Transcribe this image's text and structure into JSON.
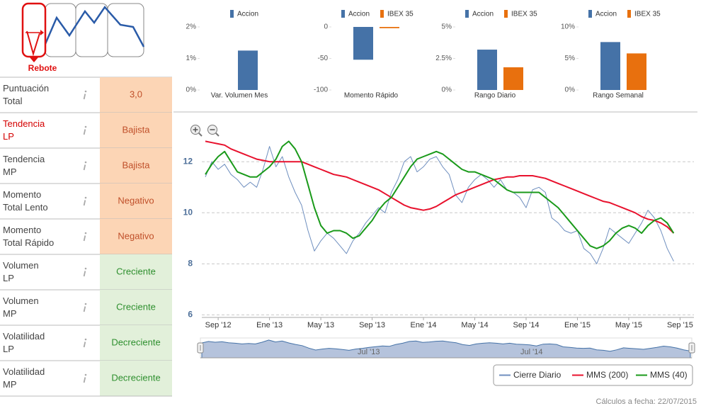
{
  "logo": {
    "label": "Rebote"
  },
  "table": {
    "rows": [
      {
        "label": [
          "Puntuación",
          "Total"
        ],
        "value": "3,0",
        "label_color": "#444444",
        "bg": "#fcd5b5",
        "color": "#c0502a"
      },
      {
        "label": [
          "Tendencia",
          "LP"
        ],
        "value": "Bajista",
        "label_color": "#d40000",
        "bg": "#fcd5b5",
        "color": "#c0502a"
      },
      {
        "label": [
          "Tendencia",
          "MP"
        ],
        "value": "Bajista",
        "label_color": "#444444",
        "bg": "#fcd5b5",
        "color": "#c0502a"
      },
      {
        "label": [
          "Momento",
          "Total Lento"
        ],
        "value": "Negativo",
        "label_color": "#444444",
        "bg": "#fcd5b5",
        "color": "#c0502a"
      },
      {
        "label": [
          "Momento",
          "Total Rápido"
        ],
        "value": "Negativo",
        "label_color": "#444444",
        "bg": "#fcd5b5",
        "color": "#c0502a"
      },
      {
        "label": [
          "Volumen",
          "LP"
        ],
        "value": "Creciente",
        "label_color": "#444444",
        "bg": "#e2f0da",
        "color": "#2e8f2e"
      },
      {
        "label": [
          "Volumen",
          "MP"
        ],
        "value": "Creciente",
        "label_color": "#444444",
        "bg": "#e2f0da",
        "color": "#2e8f2e"
      },
      {
        "label": [
          "Volatilidad",
          "LP"
        ],
        "value": "Decreciente",
        "label_color": "#444444",
        "bg": "#e2f0da",
        "color": "#2e8f2e"
      },
      {
        "label": [
          "Volatilidad",
          "MP"
        ],
        "value": "Decreciente",
        "label_color": "#444444",
        "bg": "#e2f0da",
        "color": "#2e8f2e"
      }
    ]
  },
  "chart_data": [
    {
      "type": "bar",
      "categories": [
        "Var. Volumen Mes"
      ],
      "series": [
        {
          "name": "Accion",
          "color": "#4572a7",
          "values": [
            1.25
          ]
        }
      ],
      "ylim": [
        0,
        2
      ],
      "yticks": [
        {
          "value": 0,
          "label": "0%"
        },
        {
          "value": 1,
          "label": "1%"
        },
        {
          "value": 2,
          "label": "2%"
        }
      ]
    },
    {
      "type": "bar",
      "categories": [
        "Momento Rápido"
      ],
      "series": [
        {
          "name": "Accion",
          "color": "#4572a7",
          "values": [
            -52
          ]
        },
        {
          "name": "IBEX 35",
          "color": "#e8700e",
          "values": [
            -2
          ]
        }
      ],
      "ylim": [
        -100,
        0
      ],
      "yticks": [
        0,
        -50,
        -100
      ]
    },
    {
      "type": "bar",
      "categories": [
        "Rango Diario"
      ],
      "series": [
        {
          "name": "Accion",
          "color": "#4572a7",
          "values": [
            3.2
          ]
        },
        {
          "name": "IBEX 35",
          "color": "#e8700e",
          "values": [
            1.8
          ]
        }
      ],
      "ylim": [
        0,
        5
      ],
      "yticks": [
        {
          "value": 0,
          "label": "0%"
        },
        {
          "value": 2.5,
          "label": "2.5%"
        },
        {
          "value": 5,
          "label": "5%"
        }
      ]
    },
    {
      "type": "bar",
      "categories": [
        "Rango Semanal"
      ],
      "series": [
        {
          "name": "Accion",
          "color": "#4572a7",
          "values": [
            7.6
          ]
        },
        {
          "name": "IBEX 35",
          "color": "#e8700e",
          "values": [
            5.8
          ]
        }
      ],
      "ylim": [
        0,
        10
      ],
      "yticks": [
        {
          "value": 0,
          "label": "0%"
        },
        {
          "value": 5,
          "label": "5%"
        },
        {
          "value": 10,
          "label": "10%"
        }
      ]
    },
    {
      "type": "line",
      "categories": [
        null,
        null,
        "Sep '12",
        null,
        null,
        null,
        null,
        null,
        null,
        null,
        "Ene '13",
        null,
        null,
        null,
        null,
        null,
        null,
        null,
        "May '13",
        null,
        null,
        null,
        null,
        null,
        null,
        null,
        "Sep '13",
        null,
        null,
        null,
        null,
        null,
        null,
        null,
        "Ene '14",
        null,
        null,
        null,
        null,
        null,
        null,
        null,
        "May '14",
        null,
        null,
        null,
        null,
        null,
        null,
        null,
        "Sep '14",
        null,
        null,
        null,
        null,
        null,
        null,
        null,
        "Ene '15",
        null,
        null,
        null,
        null,
        null,
        null,
        null,
        "May '15",
        null,
        null,
        null,
        null,
        null,
        null,
        null,
        "Sep '15"
      ],
      "series": [
        {
          "name": "Cierre Diario",
          "color": "#6f8fbf",
          "values": [
            11.4,
            12.0,
            11.7,
            11.9,
            11.5,
            11.3,
            11.0,
            11.2,
            11.0,
            11.7,
            12.6,
            11.8,
            12.2,
            11.4,
            10.8,
            10.3,
            9.3,
            8.5,
            8.9,
            9.2,
            9.0,
            8.7,
            8.4,
            8.9,
            9.2,
            9.6,
            9.9,
            10.2,
            10.0,
            10.8,
            11.3,
            12.0,
            12.2,
            11.6,
            11.8,
            12.1,
            12.2,
            11.8,
            11.5,
            10.7,
            10.4,
            11.0,
            11.3,
            11.5,
            11.3,
            11.0,
            11.3,
            10.9,
            10.8,
            10.6,
            10.2,
            10.9,
            11.0,
            10.8,
            9.8,
            9.6,
            9.3,
            9.2,
            9.3,
            8.6,
            8.4,
            8.0,
            8.6,
            9.4,
            9.2,
            9.0,
            8.8,
            9.2,
            9.6,
            10.1,
            9.8,
            9.3,
            8.6,
            8.1,
            null
          ]
        },
        {
          "name": "MMS (200)",
          "color": "#e8112d",
          "values": [
            12.8,
            12.75,
            12.7,
            12.65,
            12.5,
            12.4,
            12.3,
            12.2,
            12.1,
            12.05,
            12.0,
            12.0,
            12.0,
            12.0,
            12.0,
            12.0,
            11.9,
            11.8,
            11.7,
            11.6,
            11.5,
            11.45,
            11.4,
            11.3,
            11.2,
            11.1,
            11.0,
            10.9,
            10.75,
            10.6,
            10.45,
            10.3,
            10.2,
            10.15,
            10.1,
            10.15,
            10.25,
            10.4,
            10.55,
            10.7,
            10.8,
            10.9,
            11.0,
            11.1,
            11.2,
            11.3,
            11.35,
            11.4,
            11.4,
            11.45,
            11.45,
            11.45,
            11.4,
            11.35,
            11.25,
            11.15,
            11.05,
            10.95,
            10.85,
            10.75,
            10.65,
            10.55,
            10.45,
            10.4,
            10.3,
            10.2,
            10.1,
            10.0,
            9.85,
            9.75,
            9.7,
            9.6,
            9.45,
            9.2,
            null
          ]
        },
        {
          "name": "MMS (40)",
          "color": "#1a9a1a",
          "values": [
            11.5,
            11.9,
            12.2,
            12.4,
            12.0,
            11.6,
            11.5,
            11.4,
            11.4,
            11.6,
            11.8,
            12.1,
            12.6,
            12.8,
            12.5,
            12.0,
            11.1,
            10.2,
            9.5,
            9.2,
            9.3,
            9.3,
            9.2,
            9.0,
            9.1,
            9.4,
            9.7,
            10.1,
            10.4,
            10.6,
            11.0,
            11.4,
            11.8,
            12.1,
            12.2,
            12.3,
            12.4,
            12.3,
            12.1,
            11.9,
            11.7,
            11.6,
            11.6,
            11.5,
            11.4,
            11.3,
            11.1,
            10.9,
            10.8,
            10.8,
            10.8,
            10.8,
            10.8,
            10.6,
            10.4,
            10.2,
            9.9,
            9.6,
            9.3,
            9.0,
            8.7,
            8.6,
            8.7,
            8.9,
            9.2,
            9.4,
            9.5,
            9.4,
            9.2,
            9.5,
            9.7,
            9.8,
            9.6,
            9.2,
            null
          ]
        }
      ],
      "ylim": [
        5.9,
        13.2
      ],
      "yticks": [
        6,
        8,
        10,
        12
      ],
      "grid": true,
      "legend": "bottom-right",
      "navigator": {
        "labels": [
          "Jul '13",
          "Jul '14"
        ]
      }
    }
  ],
  "footer": "Cálculos a fecha: 22/07/2015"
}
